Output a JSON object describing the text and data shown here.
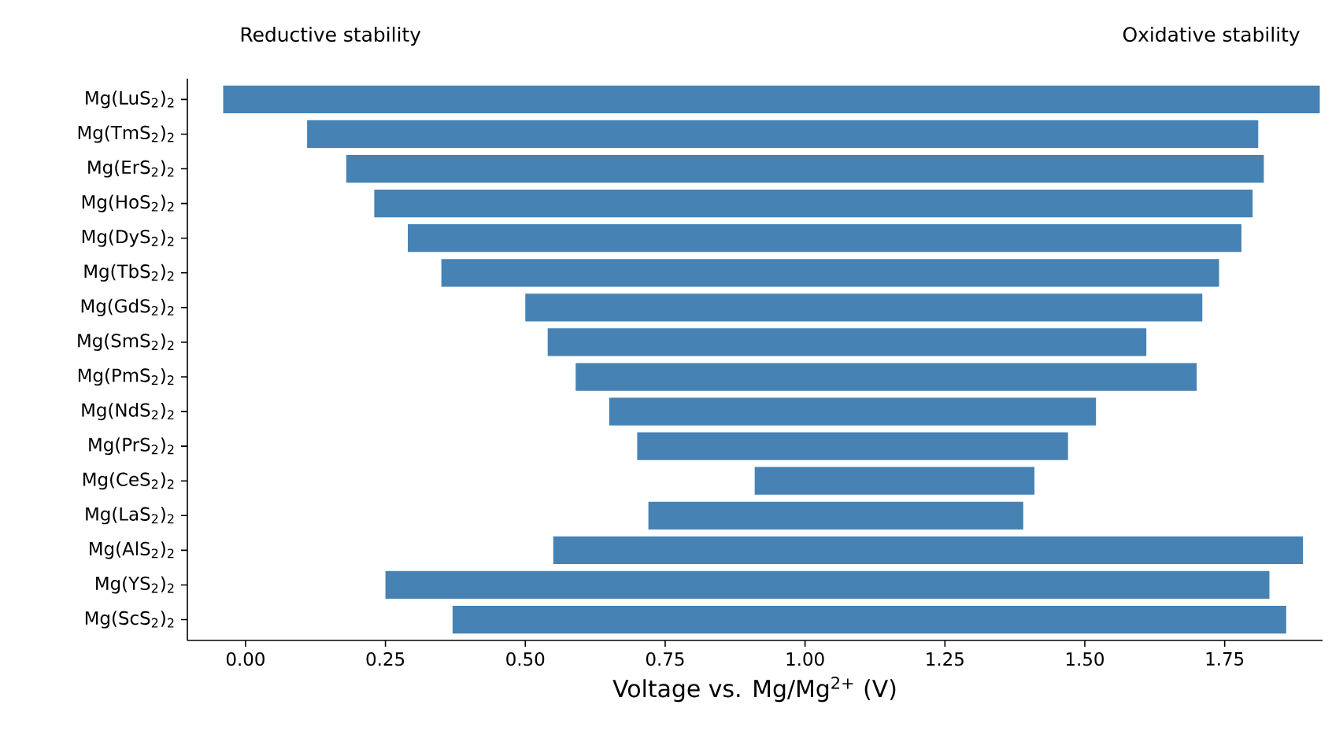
{
  "chart_data": {
    "type": "bar",
    "orientation": "horizontal",
    "xlabel": "Voltage vs. Mg/Mg$^{2+}$ (V)",
    "annotations": [
      "Reductive stability",
      "Oxidative stability"
    ],
    "categories": [
      "Mg(LuS$_{2}$)$_{2}$",
      "Mg(TmS$_{2}$)$_{2}$",
      "Mg(ErS$_{2}$)$_{2}$",
      "Mg(HoS$_{2}$)$_{2}$",
      "Mg(DyS$_{2}$)$_{2}$",
      "Mg(TbS$_{2}$)$_{2}$",
      "Mg(GdS$_{2}$)$_{2}$",
      "Mg(SmS$_{2}$)$_{2}$",
      "Mg(PmS$_{2}$)$_{2}$",
      "Mg(NdS$_{2}$)$_{2}$",
      "Mg(PrS$_{2}$)$_{2}$",
      "Mg(CeS$_{2}$)$_{2}$",
      "Mg(LaS$_{2}$)$_{2}$",
      "Mg(AlS$_{2}$)$_{2}$",
      "Mg(YS$_{2}$)$_{2}$",
      "Mg(ScS$_{2}$)$_{2}$"
    ],
    "base": [
      -0.04,
      0.11,
      0.18,
      0.23,
      0.29,
      0.35,
      0.5,
      0.54,
      0.59,
      0.65,
      0.7,
      0.91,
      0.72,
      0.55,
      0.25,
      0.37
    ],
    "values": [
      1.96,
      1.7,
      1.64,
      1.57,
      1.49,
      1.39,
      1.21,
      1.07,
      1.11,
      0.87,
      0.77,
      0.5,
      0.67,
      1.34,
      1.58,
      1.49
    ],
    "color": "#4682b4",
    "xlim": [
      -0.104,
      1.925
    ],
    "xticks": [
      {
        "value": 0,
        "label": "0.00"
      },
      {
        "value": 0.25,
        "label": "0.25"
      },
      {
        "value": 0.5,
        "label": "0.50"
      },
      {
        "value": 0.75,
        "label": "0.75"
      },
      {
        "value": 1,
        "label": "1.00"
      },
      {
        "value": 1.25,
        "label": "1.25"
      },
      {
        "value": 1.5,
        "label": "1.50"
      },
      {
        "value": 1.75,
        "label": "1.75"
      }
    ],
    "grid": false
  }
}
